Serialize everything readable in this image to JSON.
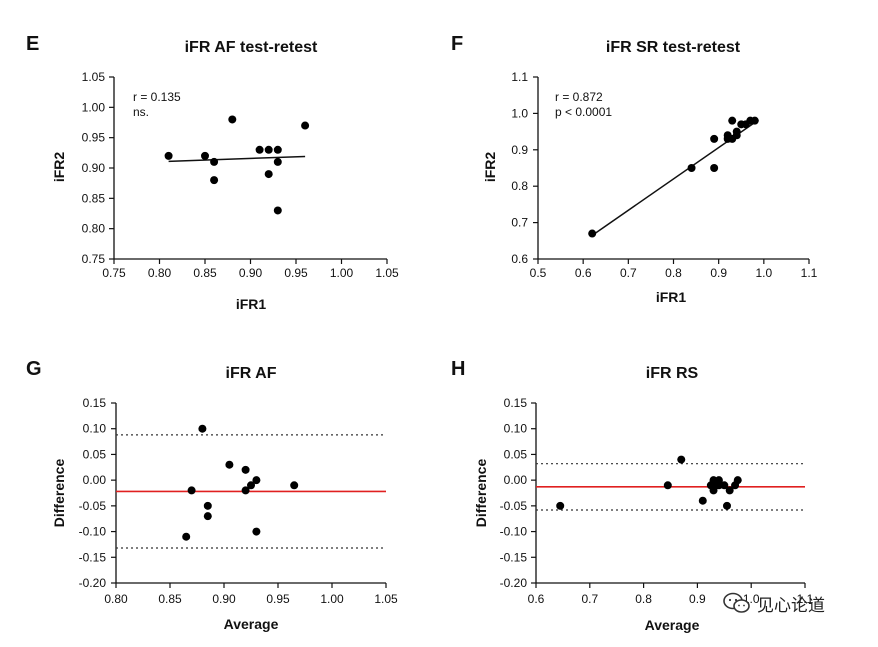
{
  "chart_data": [
    {
      "id": "E",
      "type": "scatter",
      "panel_label": "E",
      "title": "iFR AF test-retest",
      "xlabel": "iFR1",
      "ylabel": "iFR2",
      "xlim": [
        0.75,
        1.05
      ],
      "ylim": [
        0.75,
        1.05
      ],
      "xticks": [
        0.75,
        0.8,
        0.85,
        0.9,
        0.95,
        1.0,
        1.05
      ],
      "yticks": [
        0.75,
        0.8,
        0.85,
        0.9,
        0.95,
        1.0,
        1.05
      ],
      "xtick_labels": [
        "0.75",
        "0.80",
        "0.85",
        "0.90",
        "0.95",
        "1.00",
        "1.05"
      ],
      "ytick_labels": [
        "0.75",
        "0.80",
        "0.85",
        "0.90",
        "0.95",
        "1.00",
        "1.05"
      ],
      "points": [
        {
          "x": 0.81,
          "y": 0.92
        },
        {
          "x": 0.85,
          "y": 0.92
        },
        {
          "x": 0.86,
          "y": 0.91
        },
        {
          "x": 0.86,
          "y": 0.88
        },
        {
          "x": 0.88,
          "y": 0.98
        },
        {
          "x": 0.91,
          "y": 0.93
        },
        {
          "x": 0.92,
          "y": 0.93
        },
        {
          "x": 0.93,
          "y": 0.93
        },
        {
          "x": 0.93,
          "y": 0.91
        },
        {
          "x": 0.92,
          "y": 0.89
        },
        {
          "x": 0.93,
          "y": 0.83
        },
        {
          "x": 0.96,
          "y": 0.97
        }
      ],
      "fit_line": [
        [
          0.81,
          0.911
        ],
        [
          0.96,
          0.919
        ]
      ],
      "annotations": [
        "r = 0.135",
        "ns."
      ]
    },
    {
      "id": "F",
      "type": "scatter",
      "panel_label": "F",
      "title": "iFR SR test-retest",
      "xlabel": "iFR1",
      "ylabel": "iFR2",
      "xlim": [
        0.5,
        1.1
      ],
      "ylim": [
        0.6,
        1.1
      ],
      "xticks": [
        0.5,
        0.6,
        0.7,
        0.8,
        0.9,
        1.0,
        1.1
      ],
      "yticks": [
        0.6,
        0.7,
        0.8,
        0.9,
        1.0,
        1.1
      ],
      "xtick_labels": [
        "0.5",
        "0.6",
        "0.7",
        "0.8",
        "0.9",
        "1.0",
        "1.1"
      ],
      "ytick_labels": [
        "0.6",
        "0.7",
        "0.8",
        "0.9",
        "1.0",
        "1.1"
      ],
      "points": [
        {
          "x": 0.62,
          "y": 0.67
        },
        {
          "x": 0.84,
          "y": 0.85
        },
        {
          "x": 0.89,
          "y": 0.85
        },
        {
          "x": 0.89,
          "y": 0.93
        },
        {
          "x": 0.92,
          "y": 0.93
        },
        {
          "x": 0.92,
          "y": 0.94
        },
        {
          "x": 0.93,
          "y": 0.98
        },
        {
          "x": 0.93,
          "y": 0.93
        },
        {
          "x": 0.94,
          "y": 0.94
        },
        {
          "x": 0.94,
          "y": 0.95
        },
        {
          "x": 0.95,
          "y": 0.97
        },
        {
          "x": 0.96,
          "y": 0.97
        },
        {
          "x": 0.97,
          "y": 0.98
        },
        {
          "x": 0.98,
          "y": 0.98
        }
      ],
      "fit_line": [
        [
          0.62,
          0.665
        ],
        [
          0.98,
          0.975
        ]
      ],
      "annotations": [
        "r = 0.872",
        "p < 0.0001"
      ]
    },
    {
      "id": "G",
      "type": "scatter",
      "panel_label": "G",
      "title": "iFR AF",
      "xlabel": "Average",
      "ylabel": "Difference",
      "xlim": [
        0.8,
        1.05
      ],
      "ylim": [
        -0.2,
        0.15
      ],
      "xticks": [
        0.8,
        0.85,
        0.9,
        0.95,
        1.0,
        1.05
      ],
      "yticks": [
        -0.2,
        -0.15,
        -0.1,
        -0.05,
        0.0,
        0.05,
        0.1,
        0.15
      ],
      "xtick_labels": [
        "0.80",
        "0.85",
        "0.90",
        "0.95",
        "1.00",
        "1.05"
      ],
      "ytick_labels": [
        "-0.20",
        "-0.15",
        "-0.10",
        "-0.05",
        "0.00",
        "0.05",
        "0.10",
        "0.15"
      ],
      "points": [
        {
          "x": 0.865,
          "y": -0.11
        },
        {
          "x": 0.87,
          "y": -0.02
        },
        {
          "x": 0.88,
          "y": 0.1
        },
        {
          "x": 0.885,
          "y": -0.05
        },
        {
          "x": 0.885,
          "y": -0.07
        },
        {
          "x": 0.905,
          "y": 0.03
        },
        {
          "x": 0.92,
          "y": 0.02
        },
        {
          "x": 0.92,
          "y": -0.02
        },
        {
          "x": 0.925,
          "y": -0.01
        },
        {
          "x": 0.93,
          "y": 0.0
        },
        {
          "x": 0.93,
          "y": -0.1
        },
        {
          "x": 0.965,
          "y": -0.01
        }
      ],
      "mean_line": -0.022,
      "upper_loa": 0.088,
      "lower_loa": -0.132
    },
    {
      "id": "H",
      "type": "scatter",
      "panel_label": "H",
      "title": "iFR RS",
      "xlabel": "Average",
      "ylabel": "Difference",
      "xlim": [
        0.6,
        1.1
      ],
      "ylim": [
        -0.2,
        0.15
      ],
      "xticks": [
        0.6,
        0.7,
        0.8,
        0.9,
        1.0,
        1.1
      ],
      "yticks": [
        -0.2,
        -0.15,
        -0.1,
        -0.05,
        0.0,
        0.05,
        0.1,
        0.15
      ],
      "xtick_labels": [
        "0.6",
        "0.7",
        "0.8",
        "0.9",
        "1.0",
        "1.1"
      ],
      "ytick_labels": [
        "-0.20",
        "-0.15",
        "-0.10",
        "-0.05",
        "0.00",
        "0.05",
        "0.10",
        "0.15"
      ],
      "points": [
        {
          "x": 0.645,
          "y": -0.05
        },
        {
          "x": 0.845,
          "y": -0.01
        },
        {
          "x": 0.87,
          "y": 0.04
        },
        {
          "x": 0.91,
          "y": -0.04
        },
        {
          "x": 0.925,
          "y": -0.01
        },
        {
          "x": 0.93,
          "y": 0.0
        },
        {
          "x": 0.93,
          "y": -0.02
        },
        {
          "x": 0.935,
          "y": -0.01
        },
        {
          "x": 0.94,
          "y": 0.0
        },
        {
          "x": 0.94,
          "y": -0.01
        },
        {
          "x": 0.95,
          "y": -0.01
        },
        {
          "x": 0.955,
          "y": -0.05
        },
        {
          "x": 0.96,
          "y": -0.02
        },
        {
          "x": 0.97,
          "y": -0.01
        },
        {
          "x": 0.975,
          "y": 0.0
        }
      ],
      "mean_line": -0.013,
      "upper_loa": 0.032,
      "lower_loa": -0.058
    }
  ],
  "colors": {
    "point": "#000000",
    "axis": "#111111",
    "mean_line": "#e02020",
    "loa_line": "#333333"
  },
  "watermark": {
    "text": "见心论道",
    "icon": "wechat-icon"
  }
}
